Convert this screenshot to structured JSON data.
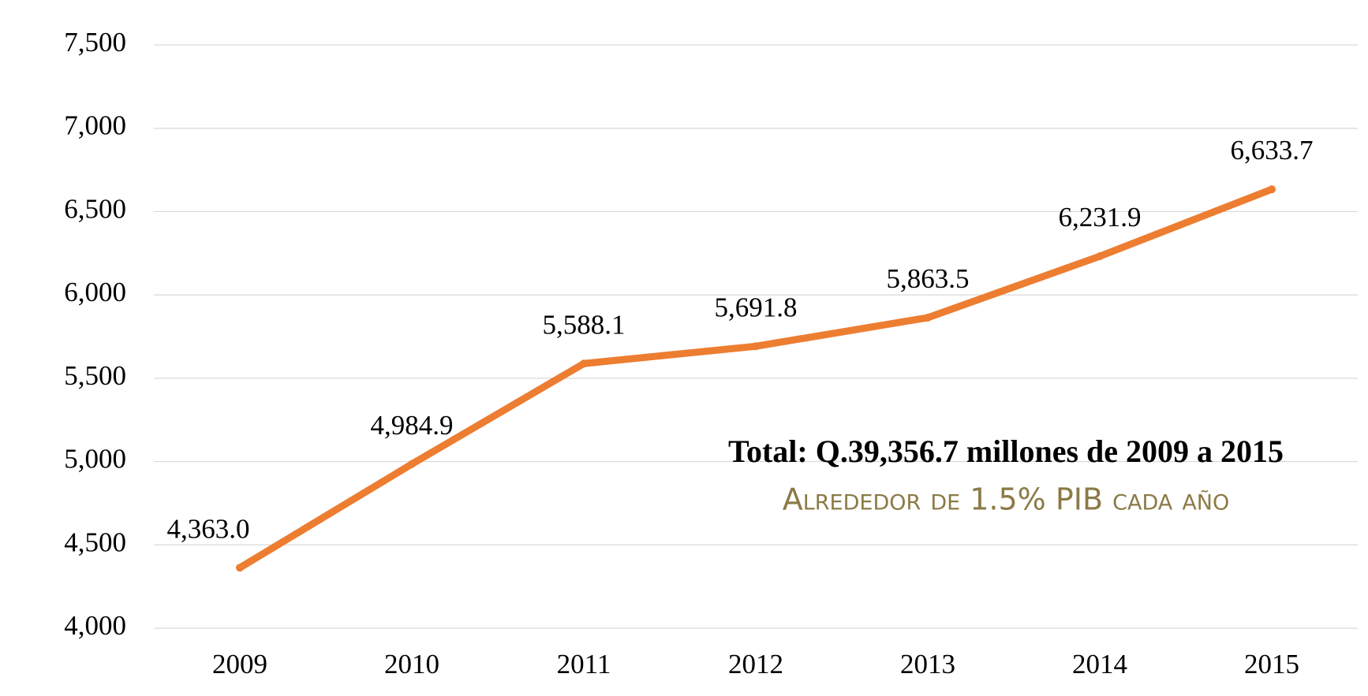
{
  "chart_data": {
    "type": "line",
    "categories": [
      "2009",
      "2010",
      "2011",
      "2012",
      "2013",
      "2014",
      "2015"
    ],
    "series": [
      {
        "color": "#ed7d31",
        "values": [
          4363.0,
          4984.9,
          5588.1,
          5691.8,
          5863.5,
          6231.9,
          6633.7
        ],
        "value_labels": [
          "4,363.0",
          "4,984.9",
          "5,588.1",
          "5,691.8",
          "5,863.5",
          "6,231.9",
          "6,633.7"
        ]
      }
    ],
    "ylim": [
      4000,
      7500
    ],
    "yticks": [
      {
        "value": 4000,
        "label": "4,000"
      },
      {
        "value": 4500,
        "label": "4,500"
      },
      {
        "value": 5000,
        "label": "5,000"
      },
      {
        "value": 5500,
        "label": "5,500"
      },
      {
        "value": 6000,
        "label": "6,000"
      },
      {
        "value": 6500,
        "label": "6,500"
      },
      {
        "value": 7000,
        "label": "7,000"
      },
      {
        "value": 7500,
        "label": "7,500"
      }
    ],
    "grid": true,
    "annotations": [
      "Total: Q.39,356.7 millones de 2009 a 2015",
      "Alrededor de 1.5% PIB cada año"
    ]
  }
}
